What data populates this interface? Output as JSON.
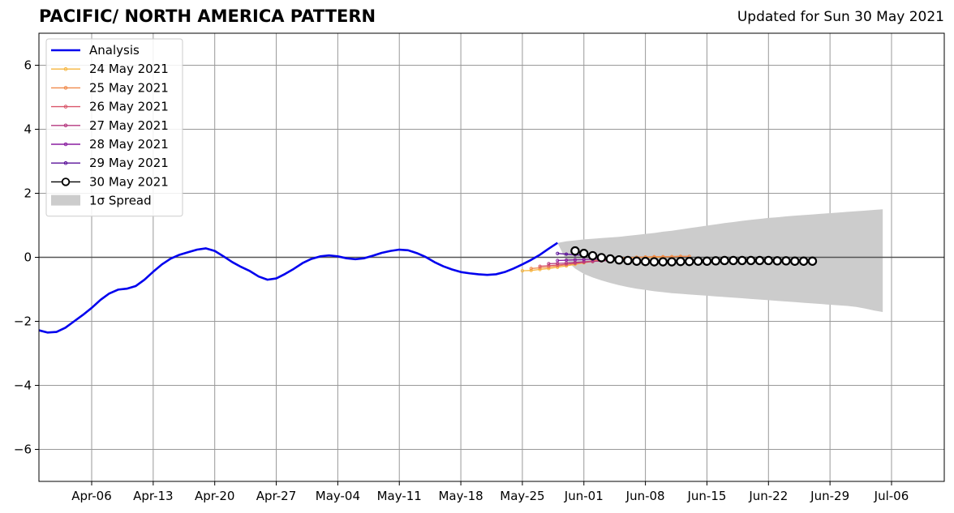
{
  "page": {
    "title": "PACIFIC/ NORTH AMERICA PATTERN",
    "updated": "Updated for Sun 30 May 2021"
  },
  "colors": {
    "analysis": "#0000ee",
    "spread": "#cccccc",
    "grid": "#999999",
    "zero_line": "#555555",
    "forecasts": {
      "24 May 2021": "#f6b53e",
      "25 May 2021": "#f08a4b",
      "26 May 2021": "#d9576b",
      "27 May 2021": "#b4377f",
      "28 May 2021": "#8a1fa0",
      "29 May 2021": "#5a1098",
      "30 May 2021": "#000000"
    }
  },
  "chart_data": {
    "type": "line",
    "title": "PACIFIC/ NORTH AMERICA PATTERN",
    "xlabel": "",
    "ylabel": "",
    "x_range": [
      "2021-03-31",
      "2021-07-12"
    ],
    "ylim": [
      -7,
      7
    ],
    "x_ticks": [
      {
        "date": "2021-04-06",
        "label": "Apr-06"
      },
      {
        "date": "2021-04-13",
        "label": "Apr-13"
      },
      {
        "date": "2021-04-20",
        "label": "Apr-20"
      },
      {
        "date": "2021-04-27",
        "label": "Apr-27"
      },
      {
        "date": "2021-05-04",
        "label": "May-04"
      },
      {
        "date": "2021-05-11",
        "label": "May-11"
      },
      {
        "date": "2021-05-18",
        "label": "May-18"
      },
      {
        "date": "2021-05-25",
        "label": "May-25"
      },
      {
        "date": "2021-06-01",
        "label": "Jun-01"
      },
      {
        "date": "2021-06-08",
        "label": "Jun-08"
      },
      {
        "date": "2021-06-15",
        "label": "Jun-15"
      },
      {
        "date": "2021-06-22",
        "label": "Jun-22"
      },
      {
        "date": "2021-06-29",
        "label": "Jun-29"
      },
      {
        "date": "2021-07-06",
        "label": "Jul-06"
      }
    ],
    "y_ticks": [
      {
        "value": -6,
        "label": "−6"
      },
      {
        "value": -4,
        "label": "−4"
      },
      {
        "value": -2,
        "label": "−2"
      },
      {
        "value": 0,
        "label": "0"
      },
      {
        "value": 2,
        "label": "2"
      },
      {
        "value": 4,
        "label": "4"
      },
      {
        "value": 6,
        "label": "6"
      }
    ],
    "grid": true,
    "legend_position": "top-left",
    "analysis": {
      "name": "Analysis",
      "points": [
        [
          "2021-03-31",
          -2.28
        ],
        [
          "2021-04-01",
          -2.35
        ],
        [
          "2021-04-02",
          -2.33
        ],
        [
          "2021-04-03",
          -2.2
        ],
        [
          "2021-04-04",
          -2.0
        ],
        [
          "2021-04-05",
          -1.8
        ],
        [
          "2021-04-06",
          -1.58
        ],
        [
          "2021-04-07",
          -1.33
        ],
        [
          "2021-04-08",
          -1.13
        ],
        [
          "2021-04-09",
          -1.01
        ],
        [
          "2021-04-10",
          -0.98
        ],
        [
          "2021-04-11",
          -0.9
        ],
        [
          "2021-04-12",
          -0.7
        ],
        [
          "2021-04-13",
          -0.45
        ],
        [
          "2021-04-14",
          -0.22
        ],
        [
          "2021-04-15",
          -0.04
        ],
        [
          "2021-04-16",
          0.08
        ],
        [
          "2021-04-17",
          0.16
        ],
        [
          "2021-04-18",
          0.24
        ],
        [
          "2021-04-19",
          0.28
        ],
        [
          "2021-04-20",
          0.2
        ],
        [
          "2021-04-21",
          0.03
        ],
        [
          "2021-04-22",
          -0.15
        ],
        [
          "2021-04-23",
          -0.3
        ],
        [
          "2021-04-24",
          -0.43
        ],
        [
          "2021-04-25",
          -0.6
        ],
        [
          "2021-04-26",
          -0.7
        ],
        [
          "2021-04-27",
          -0.66
        ],
        [
          "2021-04-28",
          -0.52
        ],
        [
          "2021-04-29",
          -0.36
        ],
        [
          "2021-04-30",
          -0.18
        ],
        [
          "2021-05-01",
          -0.05
        ],
        [
          "2021-05-02",
          0.03
        ],
        [
          "2021-05-03",
          0.06
        ],
        [
          "2021-05-04",
          0.03
        ],
        [
          "2021-05-05",
          -0.03
        ],
        [
          "2021-05-06",
          -0.06
        ],
        [
          "2021-05-07",
          -0.03
        ],
        [
          "2021-05-08",
          0.05
        ],
        [
          "2021-05-09",
          0.14
        ],
        [
          "2021-05-10",
          0.2
        ],
        [
          "2021-05-11",
          0.24
        ],
        [
          "2021-05-12",
          0.22
        ],
        [
          "2021-05-13",
          0.13
        ],
        [
          "2021-05-14",
          0.01
        ],
        [
          "2021-05-15",
          -0.15
        ],
        [
          "2021-05-16",
          -0.28
        ],
        [
          "2021-05-17",
          -0.38
        ],
        [
          "2021-05-18",
          -0.46
        ],
        [
          "2021-05-19",
          -0.5
        ],
        [
          "2021-05-20",
          -0.53
        ],
        [
          "2021-05-21",
          -0.55
        ],
        [
          "2021-05-22",
          -0.53
        ],
        [
          "2021-05-23",
          -0.46
        ],
        [
          "2021-05-24",
          -0.35
        ],
        [
          "2021-05-25",
          -0.22
        ],
        [
          "2021-05-26",
          -0.08
        ],
        [
          "2021-05-27",
          0.08
        ],
        [
          "2021-05-28",
          0.27
        ],
        [
          "2021-05-29",
          0.45
        ]
      ]
    },
    "forecasts": [
      {
        "name": "24 May 2021",
        "start": "2021-05-25",
        "values": [
          -0.42,
          -0.41,
          -0.38,
          -0.35,
          -0.31,
          -0.27,
          -0.22,
          -0.17,
          -0.13,
          -0.09,
          -0.06,
          -0.03,
          -0.01,
          0.0,
          0.0,
          0.0,
          0.01,
          0.02,
          0.03
        ]
      },
      {
        "name": "25 May 2021",
        "start": "2021-05-26",
        "values": [
          -0.35,
          -0.33,
          -0.3,
          -0.27,
          -0.23,
          -0.19,
          -0.15,
          -0.11,
          -0.08,
          -0.05,
          -0.03,
          -0.01,
          0.0,
          0.01,
          0.02,
          0.02,
          0.02,
          0.03,
          0.03
        ]
      },
      {
        "name": "26 May 2021",
        "start": "2021-05-27",
        "values": [
          -0.28,
          -0.26,
          -0.24,
          -0.22,
          -0.19,
          -0.16,
          -0.13,
          -0.11,
          -0.09
        ]
      },
      {
        "name": "27 May 2021",
        "start": "2021-05-28",
        "values": [
          -0.2,
          -0.19,
          -0.18,
          -0.16,
          -0.14,
          -0.13,
          -0.11,
          -0.1
        ]
      },
      {
        "name": "28 May 2021",
        "start": "2021-05-29",
        "values": [
          -0.1,
          -0.09,
          -0.08,
          -0.07,
          -0.06,
          -0.06
        ]
      },
      {
        "name": "29 May 2021",
        "start": "2021-05-29",
        "values": [
          0.12,
          0.1,
          0.08,
          0.06,
          0.04,
          0.02
        ]
      },
      {
        "name": "30 May 2021",
        "start": "2021-05-31",
        "values": [
          0.2,
          0.12,
          0.05,
          -0.01,
          -0.05,
          -0.08,
          -0.1,
          -0.12,
          -0.13,
          -0.14,
          -0.14,
          -0.14,
          -0.13,
          -0.13,
          -0.12,
          -0.12,
          -0.11,
          -0.1,
          -0.1,
          -0.1,
          -0.1,
          -0.1,
          -0.1,
          -0.11,
          -0.11,
          -0.12,
          -0.12,
          -0.12
        ]
      }
    ],
    "spread": {
      "name": "1σ Spread",
      "start": "2021-05-29",
      "upper": [
        0.45,
        0.5,
        0.53,
        0.56,
        0.58,
        0.6,
        0.62,
        0.64,
        0.67,
        0.7,
        0.73,
        0.76,
        0.8,
        0.83,
        0.87,
        0.91,
        0.95,
        0.99,
        1.03,
        1.07,
        1.1,
        1.14,
        1.17,
        1.2,
        1.23,
        1.25,
        1.28,
        1.3,
        1.32,
        1.34,
        1.36,
        1.38,
        1.4,
        1.42,
        1.44,
        1.46,
        1.48,
        1.5
      ],
      "lower": [
        0.45,
        -0.1,
        -0.35,
        -0.52,
        -0.63,
        -0.72,
        -0.8,
        -0.87,
        -0.93,
        -0.98,
        -1.02,
        -1.06,
        -1.09,
        -1.12,
        -1.14,
        -1.16,
        -1.18,
        -1.2,
        -1.22,
        -1.24,
        -1.26,
        -1.28,
        -1.3,
        -1.32,
        -1.34,
        -1.36,
        -1.38,
        -1.4,
        -1.42,
        -1.44,
        -1.46,
        -1.48,
        -1.5,
        -1.52,
        -1.55,
        -1.6,
        -1.66,
        -1.71
      ]
    }
  }
}
